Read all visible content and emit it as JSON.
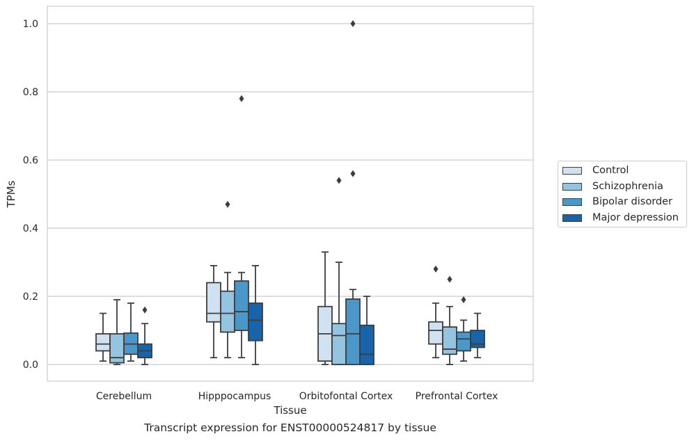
{
  "chart_data": {
    "type": "box",
    "xlabel": "Tissue",
    "ylabel": "TPMs",
    "caption": "Transcript expression for ENST00000524817 by tissue",
    "ylim": [
      -0.05,
      1.05
    ],
    "yticks": [
      "0.0",
      "0.2",
      "0.4",
      "0.6",
      "0.8",
      "1.0"
    ],
    "grid": "horizontal",
    "legend_position": "right",
    "categories": [
      "Cerebellum",
      "Hipppocampus",
      "Orbitofontal Cortex",
      "Prefrontal Cortex"
    ],
    "series": [
      {
        "name": "Control",
        "color": "#d0e1f2",
        "boxes": [
          {
            "whisker_low": 0.01,
            "q1": 0.04,
            "median": 0.06,
            "q3": 0.09,
            "whisker_high": 0.15,
            "outliers": []
          },
          {
            "whisker_low": 0.02,
            "q1": 0.125,
            "median": 0.15,
            "q3": 0.24,
            "whisker_high": 0.29,
            "outliers": []
          },
          {
            "whisker_low": 0.0,
            "q1": 0.01,
            "median": 0.09,
            "q3": 0.17,
            "whisker_high": 0.33,
            "outliers": []
          },
          {
            "whisker_low": 0.02,
            "q1": 0.06,
            "median": 0.1,
            "q3": 0.125,
            "whisker_high": 0.18,
            "outliers": [
              0.28
            ]
          }
        ]
      },
      {
        "name": "Schizophrenia",
        "color": "#94c4df",
        "boxes": [
          {
            "whisker_low": 0.0,
            "q1": 0.005,
            "median": 0.02,
            "q3": 0.09,
            "whisker_high": 0.19,
            "outliers": []
          },
          {
            "whisker_low": 0.02,
            "q1": 0.095,
            "median": 0.15,
            "q3": 0.215,
            "whisker_high": 0.27,
            "outliers": [
              0.47
            ]
          },
          {
            "whisker_low": 0.0,
            "q1": 0.0,
            "median": 0.085,
            "q3": 0.12,
            "whisker_high": 0.3,
            "outliers": [
              0.54
            ]
          },
          {
            "whisker_low": 0.0,
            "q1": 0.03,
            "median": 0.045,
            "q3": 0.11,
            "whisker_high": 0.17,
            "outliers": [
              0.25
            ]
          }
        ]
      },
      {
        "name": "Bipolar disorder",
        "color": "#4a98c9",
        "boxes": [
          {
            "whisker_low": 0.01,
            "q1": 0.03,
            "median": 0.06,
            "q3": 0.092,
            "whisker_high": 0.18,
            "outliers": []
          },
          {
            "whisker_low": 0.02,
            "q1": 0.1,
            "median": 0.155,
            "q3": 0.245,
            "whisker_high": 0.27,
            "outliers": [
              0.78
            ]
          },
          {
            "whisker_low": 0.0,
            "q1": 0.0,
            "median": 0.09,
            "q3": 0.192,
            "whisker_high": 0.22,
            "outliers": [
              0.56,
              1.0
            ]
          },
          {
            "whisker_low": 0.01,
            "q1": 0.04,
            "median": 0.075,
            "q3": 0.095,
            "whisker_high": 0.13,
            "outliers": [
              0.19
            ]
          }
        ]
      },
      {
        "name": "Major depression",
        "color": "#1764ab",
        "boxes": [
          {
            "whisker_low": 0.0,
            "q1": 0.02,
            "median": 0.04,
            "q3": 0.06,
            "whisker_high": 0.12,
            "outliers": [
              0.16
            ]
          },
          {
            "whisker_low": 0.0,
            "q1": 0.07,
            "median": 0.13,
            "q3": 0.18,
            "whisker_high": 0.29,
            "outliers": []
          },
          {
            "whisker_low": 0.0,
            "q1": 0.0,
            "median": 0.03,
            "q3": 0.115,
            "whisker_high": 0.2,
            "outliers": []
          },
          {
            "whisker_low": 0.02,
            "q1": 0.05,
            "median": 0.06,
            "q3": 0.1,
            "whisker_high": 0.15,
            "outliers": []
          }
        ]
      }
    ]
  }
}
